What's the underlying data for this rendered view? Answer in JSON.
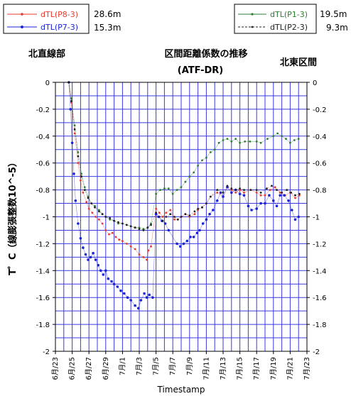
{
  "chart_data": {
    "type": "scatter",
    "title_line1": "区間距離係数の推移",
    "title_line2": "(ATF-DR)",
    "left_section_label": "北直線部",
    "right_section_label": "北東区間",
    "ylabel": "T゜C（線膨張整数10^-5）",
    "xlabel": "Timestamp",
    "ylim": [
      -2,
      0
    ],
    "yticks": [
      0,
      -0.2,
      -0.4,
      -0.6,
      -0.8,
      -1,
      -1.2,
      -1.4,
      -1.6,
      -1.8,
      -2
    ],
    "ytick_labels": [
      "0",
      "-0.2",
      "-0.4",
      "-0.6",
      "-0.8",
      "-1",
      "-1.2",
      "-1.4",
      "-1.6",
      "-1.8",
      "-2"
    ],
    "xrange_days": [
      0,
      30
    ],
    "xtick_labels": [
      "6月/23",
      "6月/25",
      "6月/27",
      "6月/29",
      "7月/1",
      "7月/3",
      "7月/5",
      "7月/7",
      "7月/9",
      "7月/11",
      "7月/13",
      "7月/15",
      "7月/17",
      "7月/19",
      "7月/21",
      "7月/23"
    ],
    "grid": true,
    "legend": [
      {
        "position": "top-left",
        "entries": [
          {
            "name": "dTL(P8-3)",
            "color": "#e8392f",
            "length": "28.6m"
          },
          {
            "name": "dTL(P7-3)",
            "color": "#1a24d6",
            "length": "15.3m"
          }
        ]
      },
      {
        "position": "top-right",
        "entries": [
          {
            "name": "dTL(P1-3)",
            "color": "#2e7d32",
            "length": "19.5m"
          },
          {
            "name": "dTL(P2-3)",
            "color": "#222222",
            "length": "9.3m"
          }
        ]
      }
    ],
    "series": [
      {
        "name": "dTL(P8-3)",
        "color": "#e8392f",
        "points": [
          [
            1.6,
            0
          ],
          [
            1.9,
            -0.15
          ],
          [
            2.3,
            -0.38
          ],
          [
            2.7,
            -0.6
          ],
          [
            3,
            -0.73
          ],
          [
            3.3,
            -0.82
          ],
          [
            3.7,
            -0.89
          ],
          [
            4,
            -0.94
          ],
          [
            4.4,
            -0.97
          ],
          [
            4.8,
            -1
          ],
          [
            5.2,
            -1.02
          ],
          [
            5.6,
            -1.05
          ],
          [
            6,
            -1.1
          ],
          [
            6.4,
            -1.13
          ],
          [
            6.8,
            -1.12
          ],
          [
            7.2,
            -1.15
          ],
          [
            7.6,
            -1.17
          ],
          [
            8,
            -1.18
          ],
          [
            8.5,
            -1.2
          ],
          [
            9,
            -1.22
          ],
          [
            9.5,
            -1.24
          ],
          [
            10,
            -1.28
          ],
          [
            10.5,
            -1.3
          ],
          [
            10.9,
            -1.32
          ],
          [
            11.1,
            -1.25
          ],
          [
            11.4,
            -1.22
          ],
          [
            12,
            -0.94
          ],
          [
            12.4,
            -0.97
          ],
          [
            12.8,
            -1
          ],
          [
            13.2,
            -0.97
          ],
          [
            13.7,
            -0.95
          ],
          [
            14.2,
            -1.02
          ],
          [
            14.6,
            -1.02
          ],
          [
            15,
            -1
          ],
          [
            15.5,
            -0.98
          ],
          [
            16,
            -1
          ],
          [
            16.6,
            -0.98
          ],
          [
            17,
            -0.95
          ],
          [
            17.5,
            -0.93
          ],
          [
            18,
            -0.9
          ],
          [
            18.5,
            -0.85
          ],
          [
            19.3,
            -0.82
          ],
          [
            20,
            -0.85
          ],
          [
            20.5,
            -0.78
          ],
          [
            21,
            -0.8
          ],
          [
            21.5,
            -0.82
          ],
          [
            22,
            -0.8
          ],
          [
            22.5,
            -0.82
          ],
          [
            23.3,
            -0.8
          ],
          [
            24,
            -0.82
          ],
          [
            24.5,
            -0.84
          ],
          [
            25,
            -0.84
          ],
          [
            25.6,
            -0.8
          ],
          [
            26.2,
            -0.78
          ],
          [
            26.8,
            -0.82
          ],
          [
            27.4,
            -0.84
          ],
          [
            28,
            -0.82
          ],
          [
            28.6,
            -0.86
          ],
          [
            29.1,
            -0.84
          ]
        ]
      },
      {
        "name": "dTL(P7-3)",
        "color": "#1a24d6",
        "points": [
          [
            1.6,
            0
          ],
          [
            1.8,
            -0.2
          ],
          [
            2,
            -0.45
          ],
          [
            2.2,
            -0.68
          ],
          [
            2.4,
            -0.88
          ],
          [
            2.7,
            -1.05
          ],
          [
            3,
            -1.16
          ],
          [
            3.3,
            -1.23
          ],
          [
            3.6,
            -1.28
          ],
          [
            3.9,
            -1.32
          ],
          [
            4.2,
            -1.3
          ],
          [
            4.5,
            -1.27
          ],
          [
            4.8,
            -1.32
          ],
          [
            5.1,
            -1.36
          ],
          [
            5.4,
            -1.4
          ],
          [
            5.7,
            -1.43
          ],
          [
            6,
            -1.4
          ],
          [
            6.3,
            -1.46
          ],
          [
            6.7,
            -1.48
          ],
          [
            7,
            -1.5
          ],
          [
            7.4,
            -1.52
          ],
          [
            7.8,
            -1.55
          ],
          [
            8.2,
            -1.57
          ],
          [
            8.6,
            -1.6
          ],
          [
            9,
            -1.62
          ],
          [
            9.5,
            -1.66
          ],
          [
            9.9,
            -1.68
          ],
          [
            10.2,
            -1.62
          ],
          [
            10.6,
            -1.57
          ],
          [
            10.9,
            -1.6
          ],
          [
            11.2,
            -1.58
          ],
          [
            11.6,
            -1.6
          ],
          [
            12,
            -0.98
          ],
          [
            12.3,
            -1
          ],
          [
            12.7,
            -1.03
          ],
          [
            13.1,
            -1.05
          ],
          [
            13.5,
            -1.1
          ],
          [
            14.5,
            -1.2
          ],
          [
            14.9,
            -1.22
          ],
          [
            15.3,
            -1.2
          ],
          [
            15.7,
            -1.18
          ],
          [
            16.1,
            -1.15
          ],
          [
            16.5,
            -1.15
          ],
          [
            16.9,
            -1.12
          ],
          [
            17.2,
            -1.1
          ],
          [
            17.6,
            -1.05
          ],
          [
            18,
            -1.02
          ],
          [
            18.4,
            -0.98
          ],
          [
            18.8,
            -0.95
          ],
          [
            19.3,
            -0.88
          ],
          [
            19.7,
            -0.82
          ],
          [
            20,
            -0.85
          ],
          [
            20.5,
            -0.78
          ],
          [
            21,
            -0.82
          ],
          [
            21.5,
            -0.8
          ],
          [
            22,
            -0.83
          ],
          [
            22.5,
            -0.84
          ],
          [
            23,
            -0.92
          ],
          [
            23.4,
            -0.95
          ],
          [
            24,
            -0.94
          ],
          [
            24.5,
            -0.9
          ],
          [
            25,
            -0.9
          ],
          [
            25.5,
            -0.84
          ],
          [
            26,
            -0.88
          ],
          [
            26.4,
            -0.92
          ],
          [
            26.8,
            -0.84
          ],
          [
            27.3,
            -0.84
          ],
          [
            27.8,
            -0.88
          ],
          [
            28.2,
            -0.95
          ],
          [
            28.6,
            -1.02
          ],
          [
            29,
            -1.0
          ]
        ]
      },
      {
        "name": "dTL(P1-3)",
        "color": "#2e7d32",
        "points": [
          [
            1.6,
            0
          ],
          [
            1.9,
            -0.12
          ],
          [
            2.3,
            -0.32
          ],
          [
            2.7,
            -0.52
          ],
          [
            3.1,
            -0.68
          ],
          [
            3.5,
            -0.78
          ],
          [
            3.9,
            -0.85
          ],
          [
            4.3,
            -0.9
          ],
          [
            4.7,
            -0.92
          ],
          [
            5.2,
            -0.95
          ],
          [
            5.6,
            -0.98
          ],
          [
            6,
            -1.0
          ],
          [
            6.5,
            -1.02
          ],
          [
            7,
            -1.03
          ],
          [
            7.5,
            -1.05
          ],
          [
            8,
            -1.05
          ],
          [
            8.5,
            -1.06
          ],
          [
            9,
            -1.07
          ],
          [
            9.5,
            -1.08
          ],
          [
            10,
            -1.08
          ],
          [
            10.5,
            -1.09
          ],
          [
            11,
            -1.08
          ],
          [
            11.4,
            -1.05
          ],
          [
            12,
            -0.83
          ],
          [
            12.5,
            -0.8
          ],
          [
            13,
            -0.79
          ],
          [
            13.5,
            -0.79
          ],
          [
            14,
            -0.83
          ],
          [
            14.5,
            -0.8
          ],
          [
            15,
            -0.78
          ],
          [
            15.5,
            -0.74
          ],
          [
            16,
            -0.7
          ],
          [
            16.5,
            -0.67
          ],
          [
            17,
            -0.62
          ],
          [
            17.5,
            -0.58
          ],
          [
            18,
            -0.56
          ],
          [
            18.5,
            -0.52
          ],
          [
            19,
            -0.5
          ],
          [
            19.5,
            -0.45
          ],
          [
            20,
            -0.43
          ],
          [
            20.5,
            -0.42
          ],
          [
            21,
            -0.44
          ],
          [
            21.5,
            -0.42
          ],
          [
            22,
            -0.45
          ],
          [
            22.6,
            -0.44
          ],
          [
            23.2,
            -0.44
          ],
          [
            24,
            -0.44
          ],
          [
            24.5,
            -0.45
          ],
          [
            25.3,
            -0.42
          ],
          [
            26,
            -0.4
          ],
          [
            26.5,
            -0.38
          ],
          [
            27,
            -0.4
          ],
          [
            27.5,
            -0.42
          ],
          [
            28,
            -0.45
          ],
          [
            28.5,
            -0.43
          ],
          [
            29,
            -0.42
          ]
        ]
      },
      {
        "name": "dTL(P2-3)",
        "color": "#222222",
        "points": [
          [
            1.6,
            0
          ],
          [
            1.9,
            -0.14
          ],
          [
            2.3,
            -0.35
          ],
          [
            2.7,
            -0.55
          ],
          [
            3.1,
            -0.7
          ],
          [
            3.5,
            -0.8
          ],
          [
            3.9,
            -0.86
          ],
          [
            4.3,
            -0.9
          ],
          [
            4.7,
            -0.93
          ],
          [
            5.2,
            -0.96
          ],
          [
            5.6,
            -0.98
          ],
          [
            6,
            -1.0
          ],
          [
            6.5,
            -1.01
          ],
          [
            7,
            -1.03
          ],
          [
            7.5,
            -1.04
          ],
          [
            8,
            -1.05
          ],
          [
            8.5,
            -1.06
          ],
          [
            9,
            -1.07
          ],
          [
            9.5,
            -1.08
          ],
          [
            10,
            -1.09
          ],
          [
            10.5,
            -1.1
          ],
          [
            11,
            -1.08
          ],
          [
            11.4,
            -1.06
          ],
          [
            12,
            -0.97
          ],
          [
            12.4,
            -1.0
          ],
          [
            12.8,
            -1.03
          ],
          [
            13.2,
            -1.0
          ],
          [
            13.7,
            -0.98
          ],
          [
            14.2,
            -1.0
          ],
          [
            14.6,
            -1.02
          ],
          [
            15,
            -1.0
          ],
          [
            15.5,
            -0.98
          ],
          [
            16,
            -0.99
          ],
          [
            16.6,
            -0.96
          ],
          [
            17,
            -0.94
          ],
          [
            17.5,
            -0.93
          ],
          [
            18,
            -0.9
          ],
          [
            18.5,
            -0.85
          ],
          [
            19.3,
            -0.8
          ],
          [
            20,
            -0.82
          ],
          [
            20.5,
            -0.77
          ],
          [
            21,
            -0.79
          ],
          [
            21.5,
            -0.8
          ],
          [
            22,
            -0.79
          ],
          [
            22.5,
            -0.8
          ],
          [
            23.3,
            -0.8
          ],
          [
            24,
            -0.8
          ],
          [
            24.5,
            -0.82
          ],
          [
            25.2,
            -0.79
          ],
          [
            25.8,
            -0.77
          ],
          [
            26.4,
            -0.8
          ],
          [
            27,
            -0.82
          ],
          [
            27.6,
            -0.8
          ],
          [
            28.1,
            -0.82
          ],
          [
            28.6,
            -0.84
          ],
          [
            29.1,
            -0.83
          ]
        ]
      }
    ]
  }
}
